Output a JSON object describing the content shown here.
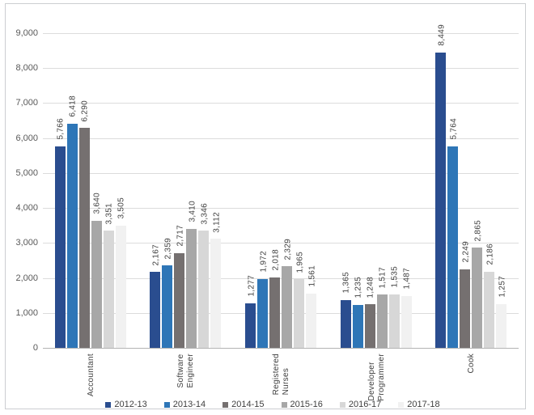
{
  "chart_data": {
    "type": "bar",
    "title": "",
    "categories": [
      "Accountant",
      "Software Engineer",
      "Registered Nurses",
      "Developer Programmer",
      "Cook"
    ],
    "series": [
      {
        "name": "2012-13",
        "color": "#2a4d8f",
        "values": [
          5766,
          2167,
          1277,
          1365,
          8449
        ]
      },
      {
        "name": "2013-14",
        "color": "#2e76b7",
        "values": [
          6418,
          2359,
          1972,
          1235,
          5764
        ]
      },
      {
        "name": "2014-15",
        "color": "#757070",
        "values": [
          6290,
          2717,
          2018,
          1248,
          2249
        ]
      },
      {
        "name": "2015-16",
        "color": "#a7a7a7",
        "values": [
          3640,
          3410,
          2329,
          1517,
          2865
        ]
      },
      {
        "name": "2016-17",
        "color": "#d7d7d7",
        "values": [
          3351,
          3346,
          1965,
          1535,
          2186
        ]
      },
      {
        "name": "2017-18",
        "color": "#f1f1f1",
        "values": [
          3505,
          3112,
          1561,
          1487,
          1257
        ]
      }
    ],
    "ylim": [
      0,
      9000
    ],
    "y_step": 1000,
    "y_tick_labels": [
      "0",
      "1,000",
      "2,000",
      "3,000",
      "4,000",
      "5,000",
      "6,000",
      "7,000",
      "8,000",
      "9,000"
    ],
    "grid": true,
    "value_labels": true,
    "value_label_rotation": 90,
    "category_label_rotation": 90,
    "legend_position": "bottom",
    "legend": [
      "2012-13",
      "2013-14",
      "2014-15",
      "2015-16",
      "2016-17",
      "2017-18"
    ],
    "colors": {
      "grid": "#dcdcdc",
      "axis": "#b3b3b3",
      "tick_text": "#595959",
      "label_text": "#404040",
      "frame_border": "#ccced1",
      "background": "#ffffff"
    }
  }
}
